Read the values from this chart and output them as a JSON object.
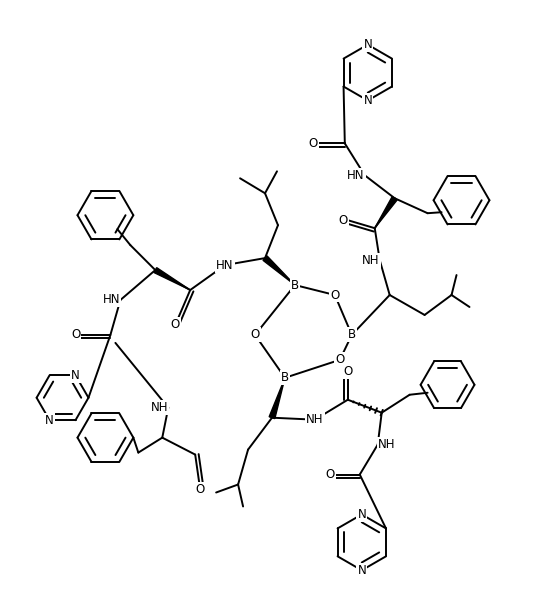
{
  "bg_color": "#ffffff",
  "line_color": "#000000",
  "line_width": 1.4,
  "font_size": 8.5,
  "figsize": [
    5.42,
    5.93
  ],
  "dpi": 100,
  "xlim": [
    0,
    542
  ],
  "ylim": [
    0,
    593
  ]
}
